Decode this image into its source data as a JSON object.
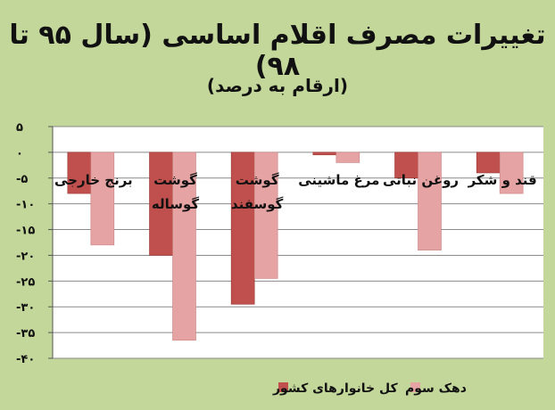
{
  "chart_data": {
    "type": "bar",
    "title": "تغییرات مصرف اقلام اساسی (سال ۹۵ تا ۹۸)",
    "subtitle": "(ارقام به درصد)",
    "categories": [
      [
        "برنج خارجی"
      ],
      [
        "گوشت",
        "گوساله"
      ],
      [
        "گوشت",
        "گوسفند"
      ],
      [
        "مرغ ماشینی"
      ],
      [
        "روغن نباتی"
      ],
      [
        "قند و شکر"
      ]
    ],
    "series": [
      {
        "name": "کل خانوارهای کشور",
        "color": "#c0504d",
        "values": [
          -8,
          -20,
          -29.5,
          -0.5,
          -5,
          -4
        ]
      },
      {
        "name": "دهک سوم",
        "color": "#e6a3a3",
        "values": [
          -18,
          -36.5,
          -24.5,
          -2,
          -19,
          -8
        ]
      }
    ],
    "ylim": [
      -40,
      5
    ],
    "yticks": [
      5,
      0,
      -5,
      -10,
      -15,
      -20,
      -25,
      -30,
      -35,
      -40
    ],
    "ytick_labels": [
      "۵",
      "۰",
      "-۵",
      "-۱۰",
      "-۱۵",
      "-۲۰",
      "-۲۵",
      "-۳۰",
      "-۳۵",
      "-۴۰"
    ],
    "grid": true,
    "legend_position": "bottom"
  }
}
